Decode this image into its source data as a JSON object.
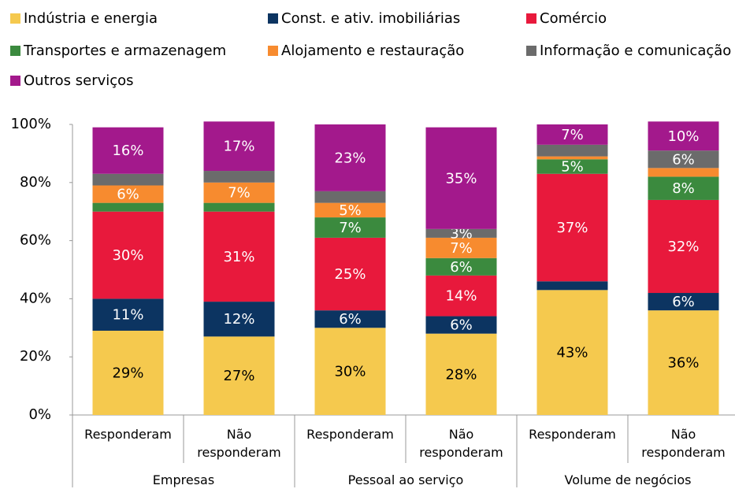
{
  "chart_data": {
    "type": "stacked_bar",
    "categories": [
      "Responderam",
      "Não responderam",
      "Responderam",
      "Não responderam",
      "Responderam",
      "Não responderam"
    ],
    "groups": [
      "Empresas",
      "Pessoal ao serviço",
      "Volume de negócios"
    ],
    "ylim": [
      0,
      100
    ],
    "yticks": [
      {
        "value": 0,
        "label": "0%"
      },
      {
        "value": 20,
        "label": "20%"
      },
      {
        "value": 40,
        "label": "40%"
      },
      {
        "value": 60,
        "label": "60%"
      },
      {
        "value": 80,
        "label": "80%"
      },
      {
        "value": 100,
        "label": "100%"
      }
    ],
    "series": [
      {
        "name": "Indústria e energia",
        "color": "#f5c94e",
        "values": [
          29,
          27,
          30,
          28,
          43,
          36
        ],
        "value_labels": [
          "29%",
          "27%",
          "30%",
          "28%",
          "43%",
          "36%"
        ]
      },
      {
        "name": "Const. e ativ. imobiliárias",
        "color": "#0c3461",
        "values": [
          11,
          12,
          6,
          6,
          3,
          6
        ],
        "value_labels": [
          "11%",
          "12%",
          "6%",
          "6%",
          null,
          "6%"
        ]
      },
      {
        "name": "Comércio",
        "color": "#e8193c",
        "values": [
          30,
          31,
          25,
          14,
          37,
          32
        ],
        "value_labels": [
          "30%",
          "31%",
          "25%",
          "14%",
          "37%",
          "32%"
        ]
      },
      {
        "name": "Transportes e armazenagem",
        "color": "#3b8a3e",
        "values": [
          3,
          3,
          7,
          6,
          5,
          8
        ],
        "value_labels": [
          null,
          null,
          "7%",
          "6%",
          "5%",
          "8%"
        ]
      },
      {
        "name": "Alojamento e restauração",
        "color": "#f78b2f",
        "values": [
          6,
          7,
          5,
          7,
          1,
          3
        ],
        "value_labels": [
          "6%",
          "7%",
          "5%",
          "7%",
          null,
          null
        ]
      },
      {
        "name": "Informação e comunicação",
        "color": "#6b6b6b",
        "values": [
          4,
          4,
          4,
          3,
          4,
          6
        ],
        "value_labels": [
          null,
          null,
          null,
          "3%",
          null,
          "6%"
        ]
      },
      {
        "name": "Outros serviços",
        "color": "#a3198c",
        "values": [
          16,
          17,
          23,
          35,
          7,
          10
        ],
        "value_labels": [
          "16%",
          "17%",
          "23%",
          "35%",
          "7%",
          "10%"
        ]
      }
    ]
  }
}
